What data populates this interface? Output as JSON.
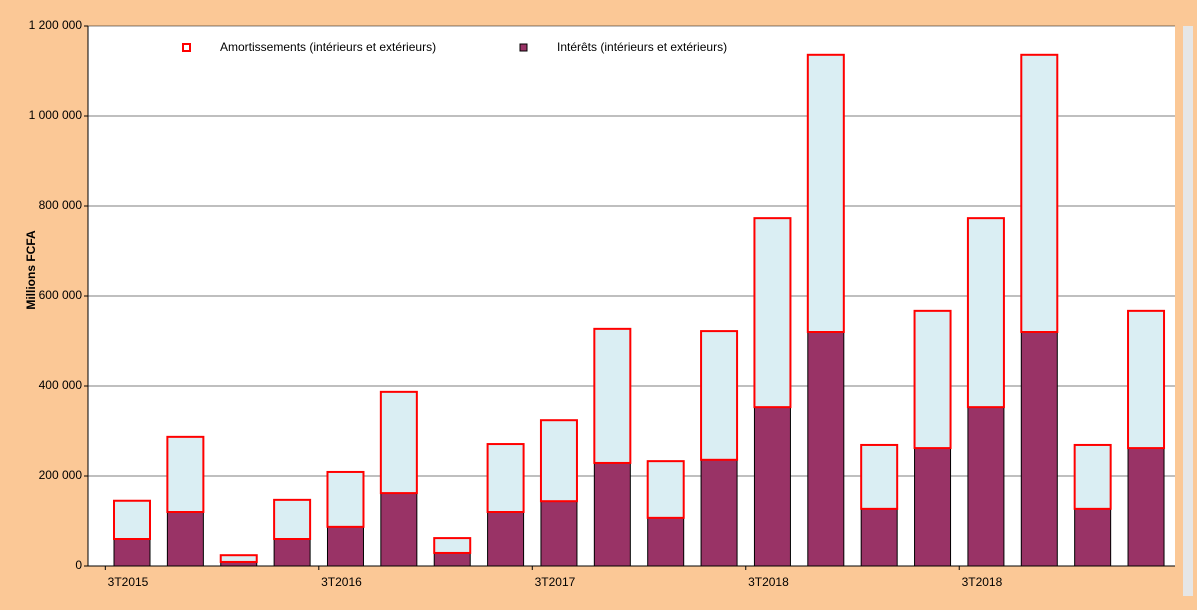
{
  "chart_data": {
    "type": "stacked_bar",
    "y_label": "Millions FCFA",
    "categories": [
      "3T2015",
      null,
      null,
      null,
      "3T2016",
      null,
      null,
      null,
      "3T2017",
      null,
      null,
      null,
      "3T2018",
      null,
      null,
      null,
      "3T2018",
      null,
      null,
      null
    ],
    "series": [
      {
        "name": "Intérêts (intérieurs et extérieurs)",
        "color": "#993366",
        "edgecolor": "#000000",
        "values": [
          60000,
          120000,
          9000,
          60000,
          87000,
          162000,
          29000,
          120000,
          144000,
          229000,
          107000,
          236000,
          353000,
          520000,
          127000,
          262000,
          353000,
          520000,
          127000,
          262000
        ]
      },
      {
        "name": "Amortissements (intérieurs et extérieurs)",
        "color": "#daeef3",
        "edgecolor": "#ff0000",
        "values": [
          85000,
          167000,
          15000,
          87000,
          122000,
          225000,
          33000,
          151000,
          180000,
          298000,
          126000,
          286000,
          420000,
          616000,
          142000,
          305000,
          420000,
          616000,
          142000,
          305000
        ]
      }
    ],
    "legend_order": [
      1,
      0
    ],
    "ylim": [
      0,
      1200000
    ],
    "yticks": [
      0,
      {
        "value": 200000,
        "label": "200 000"
      },
      {
        "value": 400000,
        "label": "400 000"
      },
      {
        "value": 600000,
        "label": "600 000"
      },
      {
        "value": 800000,
        "label": "800 000"
      },
      {
        "value": 1000000,
        "label": "1 000 000"
      },
      {
        "value": 1200000,
        "label": "1 200 000"
      }
    ],
    "grid": true
  }
}
